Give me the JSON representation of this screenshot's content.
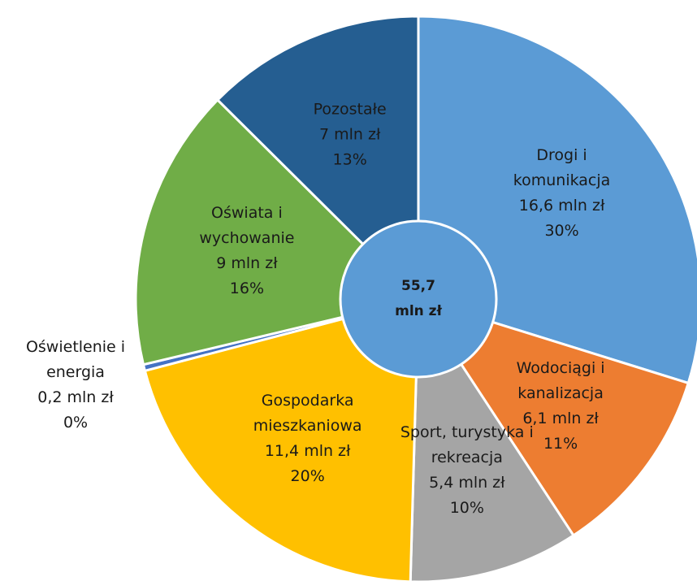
{
  "chart_data": {
    "type": "donut",
    "categories": [
      "Drogi i komunikacja",
      "Wodociągi i kanalizacja",
      "Sport, turystyka i rekreacja",
      "Gospodarka mieszkaniowa",
      "Oświetlenie i energia",
      "Oświata i wychowanie",
      "Pozostałe"
    ],
    "values": [
      16.6,
      6.1,
      5.4,
      11.4,
      0.2,
      9,
      7
    ],
    "value_labels": [
      "16,6 mln zł",
      "6,1 mln zł",
      "5,4 mln zł",
      "11,4 mln zł",
      "0,2 mln zł",
      "9 mln zł",
      "7 mln zł"
    ],
    "percent_labels": [
      "30%",
      "11%",
      "10%",
      "20%",
      "0%",
      "16%",
      "13%"
    ],
    "colors": [
      "#5b9bd5",
      "#ed7d31",
      "#a5a5a5",
      "#ffc000",
      "#4472c4",
      "#70ad47",
      "#255e91"
    ],
    "center_lines": [
      "55,7",
      "mln zł"
    ],
    "center_color": "#5b9bd5"
  }
}
